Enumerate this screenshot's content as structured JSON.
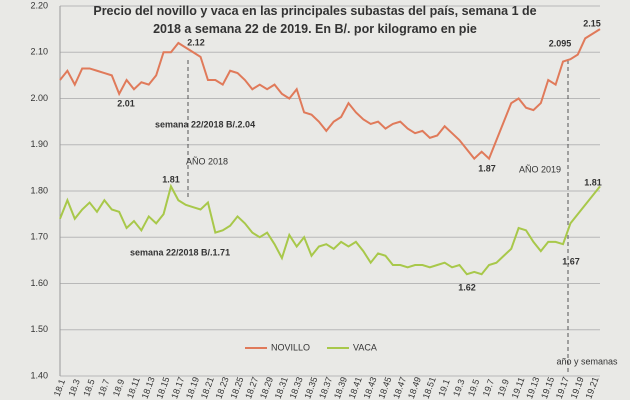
{
  "chart_data": {
    "type": "line",
    "title": "Precio del novillo y vaca en las principales subastas del país, semana 1 de 2018 a semana 22 de 2019. En B/. por kilogramo en pie",
    "categories": [
      "18.1",
      null,
      "18.3",
      null,
      "18.5",
      null,
      "18.7",
      null,
      "18.9",
      null,
      "18.11",
      null,
      "18.13",
      null,
      "18.15",
      null,
      "18.17",
      null,
      "18.19",
      null,
      "18.21",
      null,
      "18.23",
      null,
      "18.25",
      null,
      "18.27",
      null,
      "18.29",
      null,
      "18.31",
      null,
      "18.33",
      null,
      "18.35",
      null,
      "18.37",
      null,
      "18.39",
      null,
      "18.41",
      null,
      "18.43",
      null,
      "18.45",
      null,
      "18.47",
      null,
      "18.49",
      null,
      "18.51",
      null,
      "19.1",
      null,
      "19.3",
      null,
      "19.5",
      null,
      "19.7",
      null,
      "19.9",
      null,
      "19.11",
      null,
      "19.13",
      null,
      "19.15",
      null,
      "19.17",
      null,
      "19.19",
      null,
      "19.21",
      null
    ],
    "series": [
      {
        "name": "NOVILLO",
        "color": "#e07a5a",
        "values": [
          2.04,
          2.06,
          2.03,
          2.065,
          2.065,
          2.06,
          2.055,
          2.05,
          2.01,
          2.04,
          2.02,
          2.035,
          2.03,
          2.05,
          2.1,
          2.1,
          2.12,
          2.11,
          2.1,
          2.09,
          2.04,
          2.04,
          2.03,
          2.06,
          2.055,
          2.04,
          2.02,
          2.03,
          2.02,
          2.03,
          2.01,
          2.0,
          2.02,
          1.97,
          1.965,
          1.95,
          1.93,
          1.95,
          1.96,
          1.99,
          1.97,
          1.955,
          1.945,
          1.95,
          1.935,
          1.945,
          1.95,
          1.935,
          1.925,
          1.93,
          1.915,
          1.92,
          1.94,
          1.925,
          1.91,
          1.89,
          1.87,
          1.885,
          1.87,
          1.91,
          1.95,
          1.99,
          2.0,
          1.98,
          1.975,
          1.99,
          2.04,
          2.03,
          2.08,
          2.085,
          2.095,
          2.13,
          2.14,
          2.15
        ]
      },
      {
        "name": "VACA",
        "color": "#a8c84a",
        "values": [
          1.74,
          1.78,
          1.74,
          1.76,
          1.775,
          1.755,
          1.78,
          1.76,
          1.755,
          1.72,
          1.735,
          1.715,
          1.745,
          1.73,
          1.75,
          1.81,
          1.78,
          1.77,
          1.765,
          1.76,
          1.775,
          1.71,
          1.715,
          1.725,
          1.745,
          1.73,
          1.71,
          1.7,
          1.71,
          1.685,
          1.655,
          1.705,
          1.68,
          1.7,
          1.66,
          1.68,
          1.685,
          1.675,
          1.69,
          1.68,
          1.69,
          1.67,
          1.645,
          1.665,
          1.66,
          1.64,
          1.64,
          1.635,
          1.64,
          1.64,
          1.635,
          1.64,
          1.645,
          1.635,
          1.64,
          1.62,
          1.625,
          1.62,
          1.64,
          1.645,
          1.66,
          1.675,
          1.72,
          1.715,
          1.69,
          1.67,
          1.69,
          1.69,
          1.685,
          1.73,
          1.75,
          1.77,
          1.79,
          1.81
        ]
      }
    ],
    "ylim": [
      1.4,
      2.2
    ],
    "yticks": [
      {
        "value": 1.4,
        "label": "1.40"
      },
      {
        "value": 1.5,
        "label": "1.50"
      },
      {
        "value": 1.6,
        "label": "1.60"
      },
      {
        "value": 1.7,
        "label": "1.70"
      },
      {
        "value": 1.8,
        "label": "1.80"
      },
      {
        "value": 1.9,
        "label": "1.90"
      },
      {
        "value": 2.0,
        "label": "2.00"
      },
      {
        "value": 2.1,
        "label": "2.10"
      },
      {
        "value": 2.2,
        "label": "2.20"
      }
    ],
    "grid": true,
    "legend": "bottom",
    "annotations": [
      "2.01",
      "2.12",
      "1.87",
      "2.095",
      "2.15",
      "1.81",
      "1.62",
      "1.67",
      "1.81",
      "semana 22/2018  B/.2.04",
      "semana 22/2018  B/.1.71",
      "AÑO 2018",
      "AÑO 2019",
      "año y semanas"
    ]
  }
}
